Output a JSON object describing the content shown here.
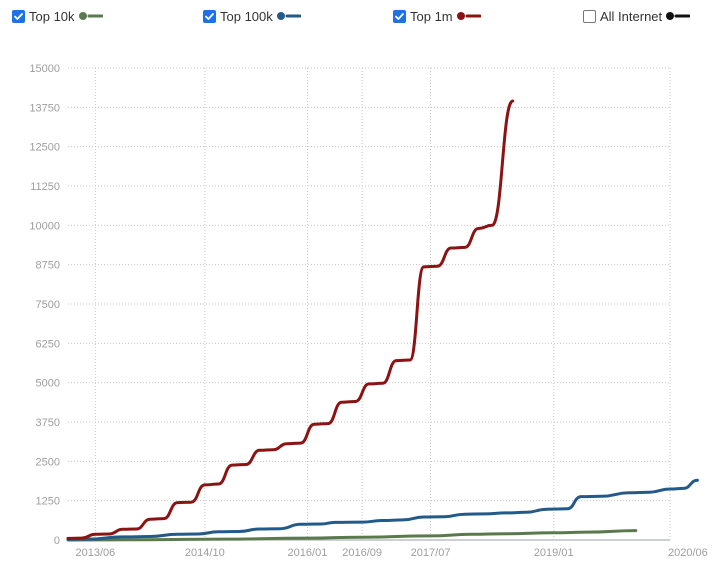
{
  "legend": {
    "items": [
      {
        "label": "Top 10k",
        "checked": true,
        "color": "#5a7a4e"
      },
      {
        "label": "Top 100k",
        "checked": true,
        "color": "#245a8a"
      },
      {
        "label": "Top 1m",
        "checked": true,
        "color": "#8b1313"
      },
      {
        "label": "All Internet",
        "checked": false,
        "color": "#111111"
      }
    ]
  },
  "chart_data": {
    "type": "line",
    "title": "",
    "xlabel": "",
    "ylabel": "",
    "grid": true,
    "legend_position": "top",
    "ylim": [
      0,
      15000
    ],
    "yticks": [
      0,
      1250,
      2500,
      3750,
      5000,
      6250,
      7500,
      8750,
      10000,
      11250,
      12500,
      13750,
      15000
    ],
    "xlim": [
      "2013-02",
      "2020-06"
    ],
    "xticks": [
      "2013/06",
      "2014/10",
      "2016/01",
      "2016/09",
      "2017/07",
      "2019/01",
      "2020/06"
    ],
    "series": [
      {
        "name": "Top 10k",
        "color": "#5a7a4e",
        "points": [
          [
            "2013-02",
            0
          ],
          [
            "2014-01",
            10
          ],
          [
            "2015-01",
            30
          ],
          [
            "2016-01",
            60
          ],
          [
            "2016-09",
            90
          ],
          [
            "2017-07",
            130
          ],
          [
            "2018-01",
            180
          ],
          [
            "2018-06",
            200
          ],
          [
            "2019-01",
            230
          ],
          [
            "2019-06",
            250
          ],
          [
            "2020-01",
            300
          ]
        ]
      },
      {
        "name": "Top 100k",
        "color": "#245a8a",
        "points": [
          [
            "2013-02",
            20
          ],
          [
            "2013-05",
            30
          ],
          [
            "2013-10",
            100
          ],
          [
            "2014-02",
            110
          ],
          [
            "2014-06",
            180
          ],
          [
            "2014-09",
            190
          ],
          [
            "2014-12",
            260
          ],
          [
            "2015-03",
            270
          ],
          [
            "2015-06",
            350
          ],
          [
            "2015-09",
            360
          ],
          [
            "2015-12",
            500
          ],
          [
            "2016-03",
            510
          ],
          [
            "2016-05",
            560
          ],
          [
            "2016-09",
            570
          ],
          [
            "2016-12",
            620
          ],
          [
            "2017-03",
            640
          ],
          [
            "2017-06",
            730
          ],
          [
            "2017-09",
            740
          ],
          [
            "2017-12",
            820
          ],
          [
            "2018-03",
            830
          ],
          [
            "2018-06",
            860
          ],
          [
            "2018-09",
            880
          ],
          [
            "2018-12",
            980
          ],
          [
            "2019-03",
            990
          ],
          [
            "2019-05",
            1380
          ],
          [
            "2019-08",
            1390
          ],
          [
            "2019-12",
            1500
          ],
          [
            "2020-03",
            1520
          ],
          [
            "2020-06",
            1620
          ],
          [
            "2020-08",
            1640
          ],
          [
            "2020-10",
            1900
          ]
        ]
      },
      {
        "name": "Top 1m",
        "color": "#8b1313",
        "points": [
          [
            "2013-02",
            50
          ],
          [
            "2013-04",
            60
          ],
          [
            "2013-06",
            180
          ],
          [
            "2013-08",
            190
          ],
          [
            "2013-10",
            340
          ],
          [
            "2013-12",
            350
          ],
          [
            "2014-02",
            660
          ],
          [
            "2014-04",
            680
          ],
          [
            "2014-06",
            1190
          ],
          [
            "2014-08",
            1200
          ],
          [
            "2014-10",
            1750
          ],
          [
            "2014-12",
            1780
          ],
          [
            "2015-02",
            2380
          ],
          [
            "2015-04",
            2400
          ],
          [
            "2015-06",
            2850
          ],
          [
            "2015-08",
            2870
          ],
          [
            "2015-10",
            3060
          ],
          [
            "2015-12",
            3080
          ],
          [
            "2016-02",
            3680
          ],
          [
            "2016-04",
            3700
          ],
          [
            "2016-06",
            4380
          ],
          [
            "2016-08",
            4400
          ],
          [
            "2016-10",
            4960
          ],
          [
            "2016-12",
            4980
          ],
          [
            "2017-02",
            5700
          ],
          [
            "2017-04",
            5720
          ],
          [
            "2017-06",
            8680
          ],
          [
            "2017-08",
            8700
          ],
          [
            "2017-10",
            9280
          ],
          [
            "2017-12",
            9300
          ],
          [
            "2018-02",
            9900
          ],
          [
            "2018-04",
            10000
          ],
          [
            "2018-07",
            13950
          ]
        ]
      }
    ]
  }
}
